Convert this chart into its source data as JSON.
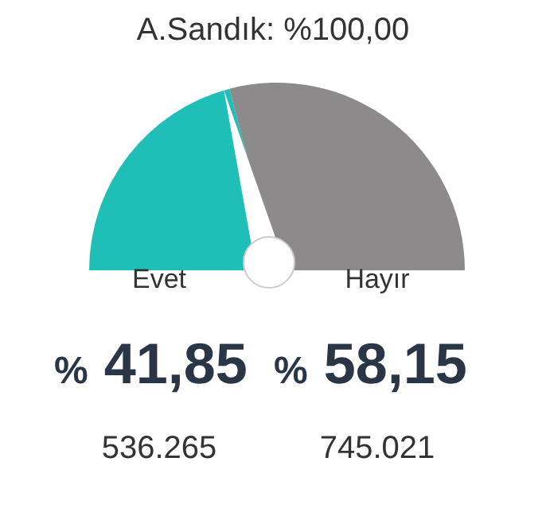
{
  "chart_data": {
    "type": "pie",
    "title": "A.Sandık: %100,00",
    "categories": [
      "Evet",
      "Hayır"
    ],
    "values": [
      41.85,
      58.15
    ],
    "colors": [
      "#1fbfb8",
      "#8c8a8a"
    ],
    "value_labels": [
      "% 41,85",
      "% 58,15"
    ],
    "needle": "Evet",
    "annotations": [
      "536.265",
      "745.021"
    ]
  }
}
